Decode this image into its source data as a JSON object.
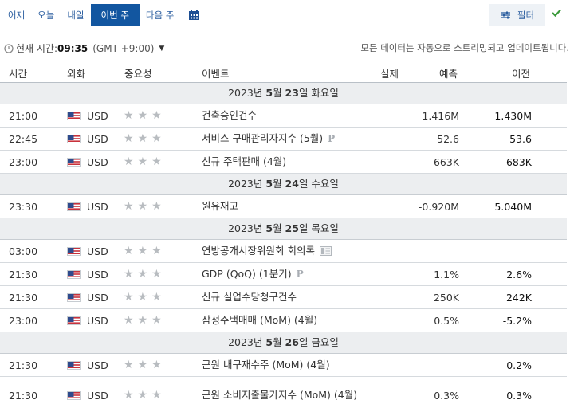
{
  "tabs": [
    {
      "label": "어제"
    },
    {
      "label": "오늘"
    },
    {
      "label": "내일"
    },
    {
      "label": "이번 주"
    },
    {
      "label": "다음 주"
    }
  ],
  "filter_label": "필터",
  "time": {
    "label": "현재 시간:",
    "value": "09:35",
    "gmt": "(GMT +9:00)"
  },
  "notice": "모든 데이터는 자동으로 스트리밍되고 업데이트됩니다.",
  "columns": {
    "time": "시간",
    "currency": "외화",
    "importance": "중요성",
    "event": "이벤트",
    "actual": "실제",
    "forecast": "예측",
    "previous": "이전"
  },
  "colors": {
    "accent": "#1256a0",
    "link": "#2a5d9f",
    "check": "#3c9a3c"
  },
  "days": [
    {
      "date_year": "2023",
      "date_y_suffix": "년 ",
      "date_month": "5",
      "date_m_suffix": "월 ",
      "date_day": "23",
      "date_d_suffix": "일 화요일",
      "events": [
        {
          "time": "21:00",
          "currency": "USD",
          "event": "건축승인건수",
          "forecast": "1.416M",
          "previous": "1.430M"
        },
        {
          "time": "22:45",
          "currency": "USD",
          "event": "서비스 구매관리자지수 (5월)",
          "prelim": "P",
          "forecast": "52.6",
          "previous": "53.6"
        },
        {
          "time": "23:00",
          "currency": "USD",
          "event": "신규 주택판매 (4월)",
          "forecast": "663K",
          "previous": "683K"
        }
      ]
    },
    {
      "date_year": "2023",
      "date_y_suffix": "년 ",
      "date_month": "5",
      "date_m_suffix": "월 ",
      "date_day": "24",
      "date_d_suffix": "일 수요일",
      "events": [
        {
          "time": "23:30",
          "currency": "USD",
          "event": "원유재고",
          "forecast": "-0.920M",
          "previous": "5.040M"
        }
      ]
    },
    {
      "date_year": "2023",
      "date_y_suffix": "년 ",
      "date_month": "5",
      "date_m_suffix": "월 ",
      "date_day": "25",
      "date_d_suffix": "일 목요일",
      "events": [
        {
          "time": "03:00",
          "currency": "USD",
          "event": "연방공개시장위원회 회의록",
          "minutes_icon": "document-icon",
          "forecast": "",
          "previous": ""
        },
        {
          "time": "21:30",
          "currency": "USD",
          "event": "GDP (QoQ) (1분기)",
          "prelim": "P",
          "forecast": "1.1%",
          "previous": "2.6%"
        },
        {
          "time": "21:30",
          "currency": "USD",
          "event": "신규 실업수당청구건수",
          "forecast": "250K",
          "previous": "242K"
        },
        {
          "time": "23:00",
          "currency": "USD",
          "event": "잠정주택매매 (MoM) (4월)",
          "forecast": "0.5%",
          "previous": "-5.2%"
        }
      ]
    },
    {
      "date_year": "2023",
      "date_y_suffix": "년 ",
      "date_month": "5",
      "date_m_suffix": "월 ",
      "date_day": "26",
      "date_d_suffix": "일 금요일",
      "events": [
        {
          "time": "21:30",
          "currency": "USD",
          "event": "근원 내구재수주 (MoM) (4월)",
          "forecast": "",
          "previous": "0.2%"
        },
        {
          "time": "21:30",
          "currency": "USD",
          "event": "근원 소비지출물가지수 (MoM) (4월)",
          "tall": true,
          "forecast": "0.3%",
          "previous": "0.3%"
        }
      ]
    }
  ]
}
